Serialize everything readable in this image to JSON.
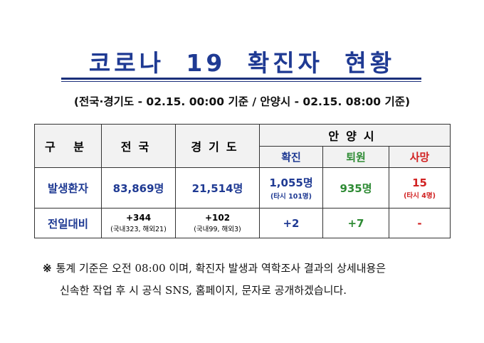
{
  "title": "코로나 19 확진자 현황",
  "subtitle": "(전국·경기도 - 02.15. 00:00 기준 / 안양시 - 02.15. 08:00 기준)",
  "table": {
    "col_header": "구 분",
    "national_header": "전국",
    "gyeonggi_header": "경기도",
    "anyang_header": "안양시",
    "anyang_sub": {
      "confirmed": "확진",
      "discharged": "퇴원",
      "death": "사망"
    },
    "rows": {
      "patients": {
        "label": "발생환자",
        "national": "83,869명",
        "gyeonggi": "21,514명",
        "anyang_confirmed": "1,055명",
        "anyang_confirmed_note": "(타시 101명)",
        "anyang_discharged": "935명",
        "anyang_death": "15",
        "anyang_death_note": "(타시 4명)"
      },
      "daily_change": {
        "label": "전일대비",
        "national": "+344",
        "national_note": "(국내323, 해외21)",
        "gyeonggi": "+102",
        "gyeonggi_note": "(국내99, 해외3)",
        "anyang_confirmed": "+2",
        "anyang_discharged": "+7",
        "anyang_death": "-"
      }
    }
  },
  "footnote": {
    "mark": "※",
    "line1": "통계 기준은 오전 08:00 이며, 확진자 발생과 역학조사 결과의 상세내용은",
    "line2": "신속한 작업 후 시 공식 SNS, 홈페이지, 문자로 공개하겠습니다."
  }
}
